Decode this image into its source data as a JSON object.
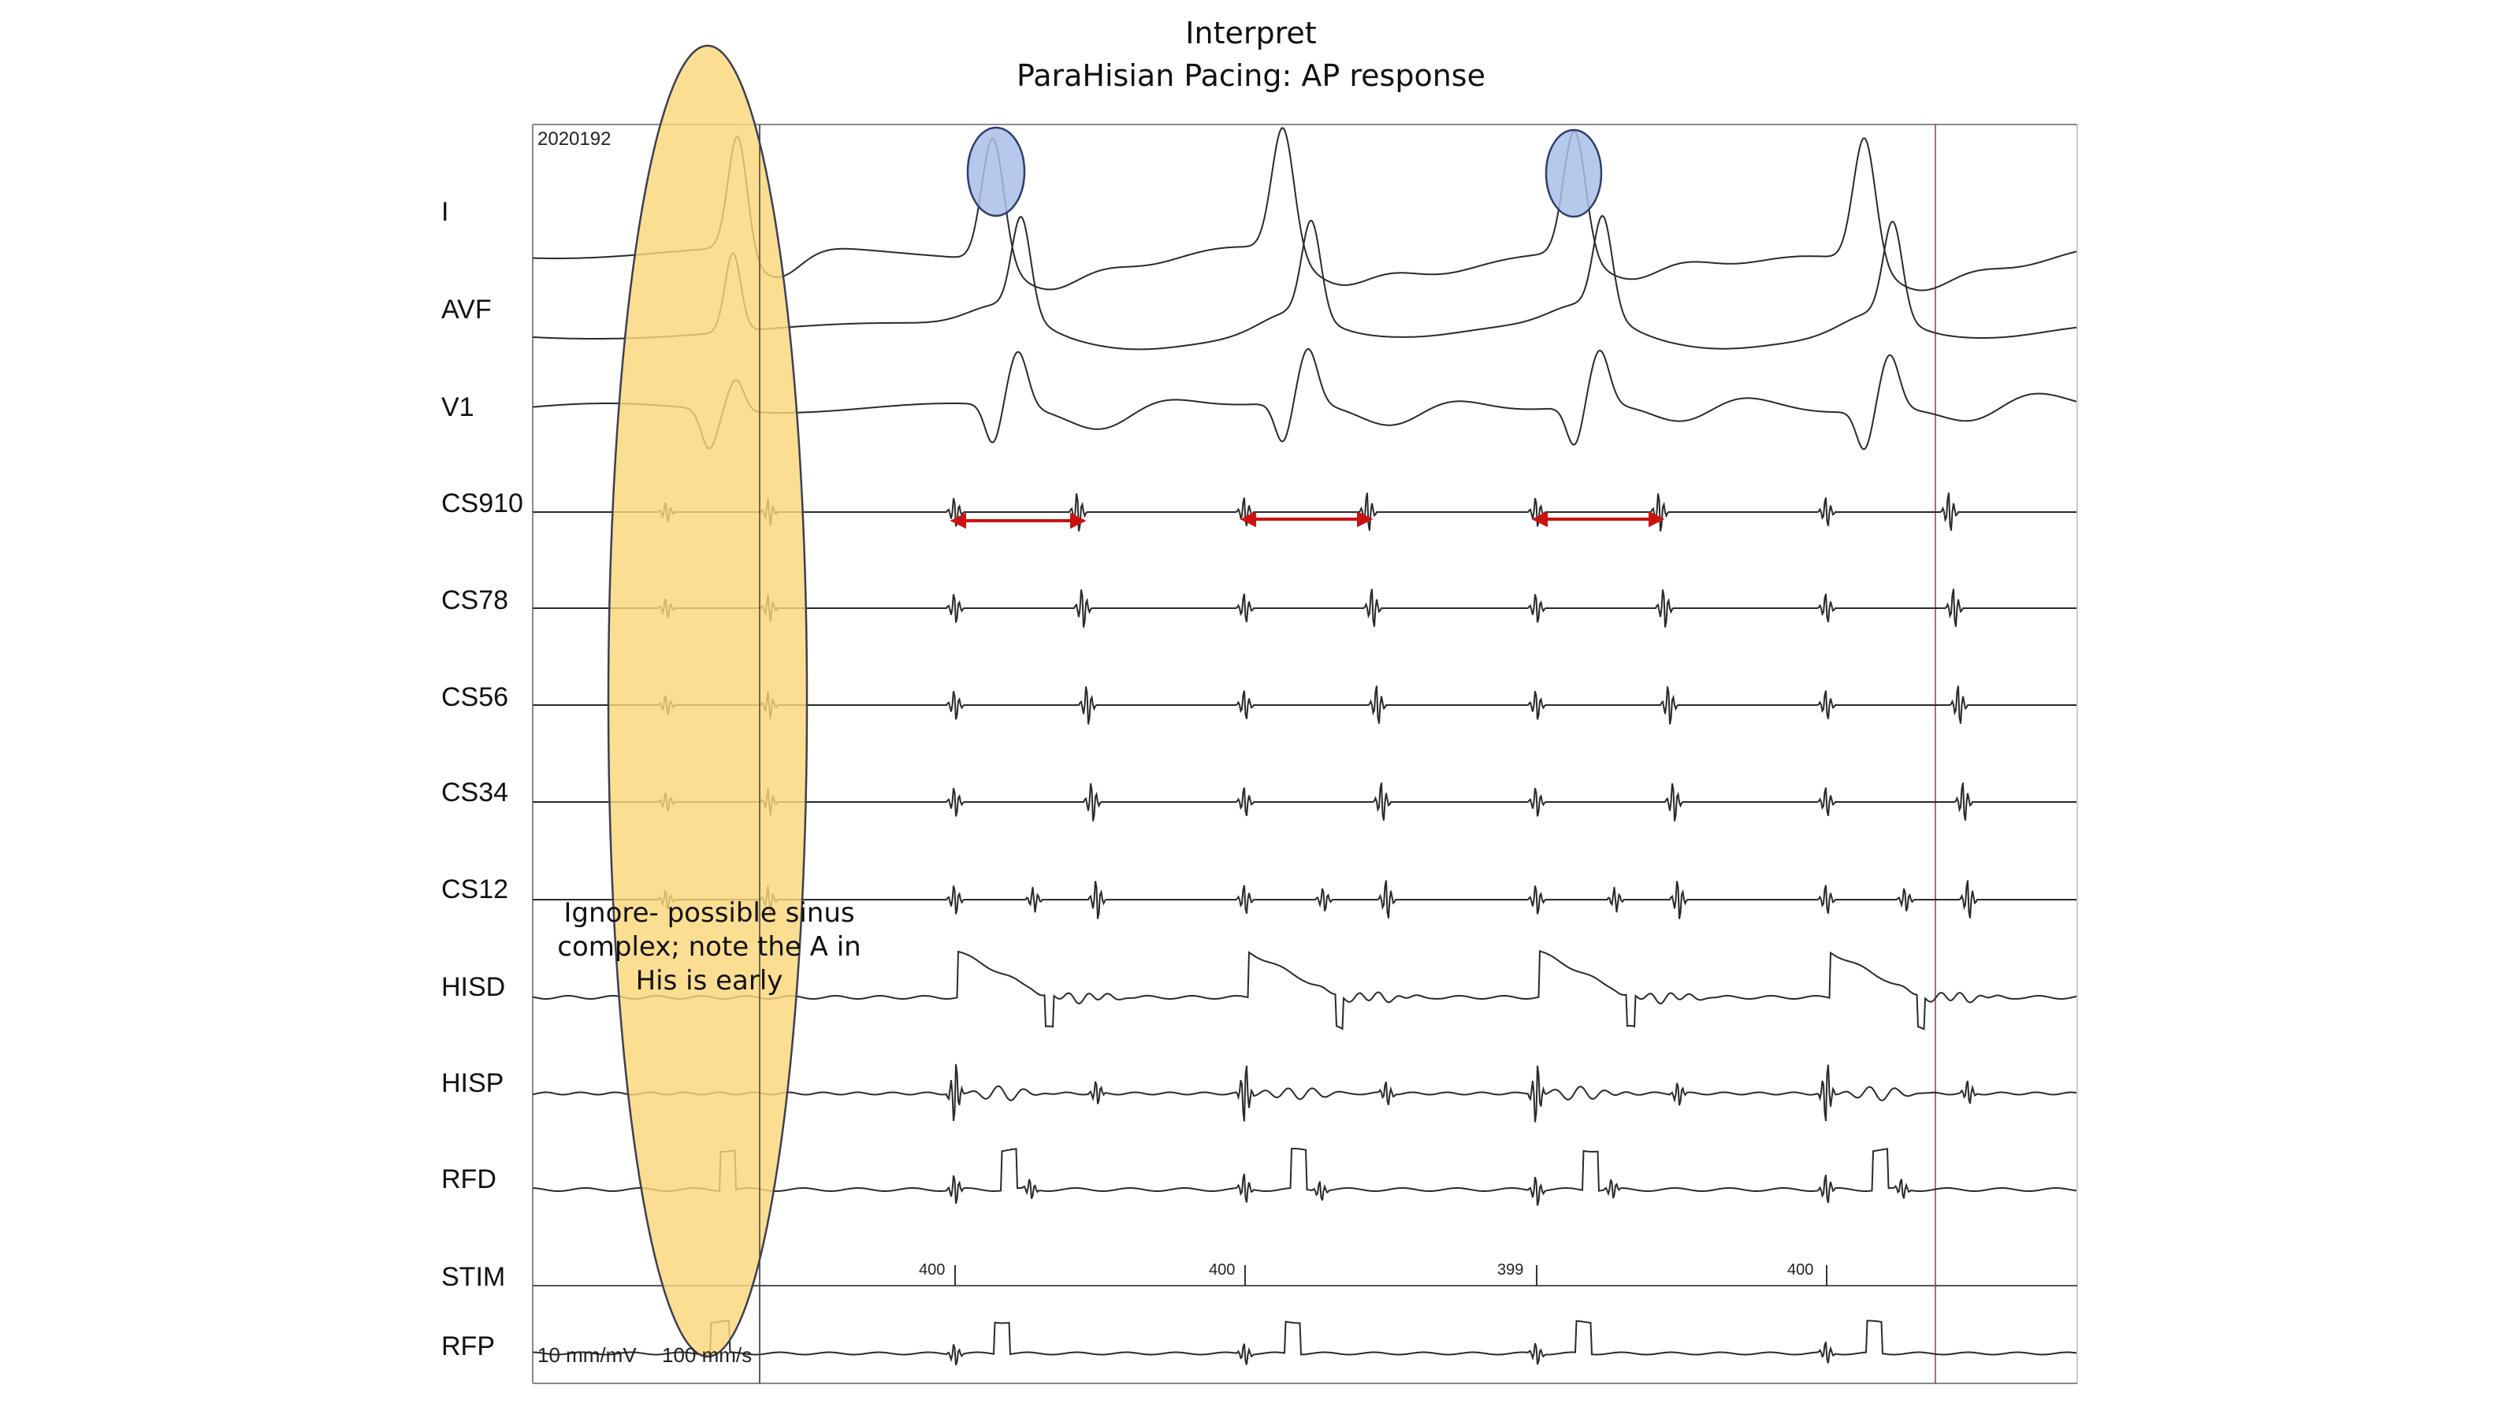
{
  "title": {
    "line1": "Interpret",
    "line2": "ParaHisian Pacing: AP response"
  },
  "recording_id": "2020192",
  "leads": [
    "I",
    "AVF",
    "V1",
    "CS910",
    "CS78",
    "CS56",
    "CS34",
    "CS12",
    "HISD",
    "HISP",
    "RFD",
    "STIM",
    "RFP"
  ],
  "stim_cycle_lengths": [
    "400",
    "400",
    "399",
    "400"
  ],
  "calibration": {
    "gain": "10 mm/mV",
    "speed": "100 mm/s"
  },
  "annotation": {
    "note": "Ignore- possible sinus complex; note the A in His is early"
  },
  "colors": {
    "highlight_fill": "#fbd77a",
    "highlight_stroke": "#3b3f52",
    "marker_fill": "#a9bfe6",
    "marker_stroke": "#2e3e6e",
    "arrow": "#cc1111",
    "trace": "#2a2a2a",
    "frame": "#777777",
    "cursor": "#9a3a4a"
  }
}
